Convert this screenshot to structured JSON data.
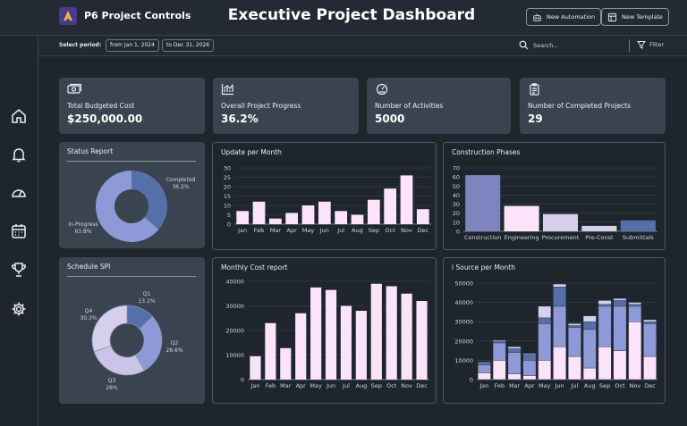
{
  "app": {
    "name": "P6 Project Controls",
    "title": "Executive Project Dashboard"
  },
  "header": {
    "new_automation": "New Automation",
    "new_template": "New Template"
  },
  "filters": {
    "period_label": "Select period:",
    "from": "from Jan 1, 2024",
    "to": "to Dec 31, 2026",
    "search_placeholder": "Search...",
    "filter_label": "Filter"
  },
  "sidebar": {
    "icons": [
      "home-icon",
      "bell-icon",
      "gauge-icon",
      "calendar-icon",
      "trophy-icon",
      "gear-icon"
    ]
  },
  "kpis": [
    {
      "label": "Total Budgeted Cost",
      "value": "$250,000.00",
      "icon": "money-icon"
    },
    {
      "label": "Overall Project Progress",
      "value": "36.2%",
      "icon": "chart-icon"
    },
    {
      "label": "Number of Activities",
      "value": "5000",
      "icon": "gauge-icon"
    },
    {
      "label": "Number of Completed Projects",
      "value": "29",
      "icon": "clipboard-icon"
    }
  ],
  "colors": {
    "accent_dark": "#7d84c0",
    "accent_light": "#fbe3fb",
    "lavender": "#d6d0ee",
    "blue": "#5570a8",
    "steel": "#8e9ad8"
  },
  "chart_data": [
    {
      "id": "status",
      "type": "pie",
      "title": "Status Report",
      "categories": [
        "Completed",
        "In-Progress"
      ],
      "values": [
        36.2,
        63.8
      ],
      "labels": [
        "36.2%",
        "63.8%"
      ]
    },
    {
      "id": "update",
      "type": "bar",
      "title": "Update per Month",
      "categories": [
        "Jan",
        "Feb",
        "Mar",
        "Apr",
        "May",
        "Jun",
        "Jul",
        "Aug",
        "Sep",
        "Oct",
        "Nov",
        "Dec"
      ],
      "values": [
        7,
        12,
        3,
        6,
        10,
        12,
        7,
        5,
        13,
        19,
        26,
        8
      ],
      "yticks": [
        0,
        5,
        10,
        15,
        20,
        25,
        30
      ],
      "ylim": [
        0,
        30
      ]
    },
    {
      "id": "phases",
      "type": "bar",
      "title": "Construction Phases",
      "categories": [
        "Construction",
        "Engineering",
        "Procurement",
        "Pre-Const",
        "Submittals"
      ],
      "values": [
        62,
        28,
        19,
        6,
        12
      ],
      "yticks": [
        0,
        10,
        20,
        30,
        40,
        50,
        60,
        70
      ],
      "ylim": [
        0,
        70
      ]
    },
    {
      "id": "spi",
      "type": "pie",
      "title": "Schedule SPI",
      "categories": [
        "Q1",
        "Q2",
        "Q3",
        "Q4"
      ],
      "values": [
        13.1,
        28.6,
        28,
        30.3
      ],
      "labels": [
        "13.1%",
        "28.6%",
        "28%",
        "30.3%"
      ]
    },
    {
      "id": "monthly",
      "type": "bar",
      "title": "Monthly Cost report",
      "categories": [
        "Jan",
        "Feb",
        "Mar",
        "Apr",
        "May",
        "Jun",
        "Jul",
        "Aug",
        "Sep",
        "Oct",
        "Nov",
        "Dec"
      ],
      "values": [
        9500,
        23000,
        12800,
        27000,
        37500,
        36500,
        30000,
        28000,
        39000,
        38000,
        35000,
        32000
      ],
      "yticks": [
        0,
        10000,
        20000,
        30000,
        40000
      ],
      "ylim": [
        0,
        40000
      ]
    },
    {
      "id": "source",
      "type": "bar",
      "title": "l Source per Month",
      "categories": [
        "Jan",
        "Feb",
        "Mar",
        "Apr",
        "May",
        "Jun",
        "Jul",
        "Aug",
        "Sep",
        "Oct",
        "Nov",
        "Dec"
      ],
      "series": [
        {
          "values": [
            3500,
            10000,
            3000,
            2000,
            10000,
            17000,
            12000,
            6000,
            17000,
            15000,
            30000,
            12000
          ]
        },
        {
          "values": [
            4000,
            9000,
            11000,
            8000,
            19000,
            21000,
            15000,
            20000,
            21000,
            23000,
            8000,
            17000
          ]
        },
        {
          "values": [
            1000,
            1000,
            2000,
            3000,
            3000,
            10000,
            1000,
            4000,
            1000,
            3000,
            1000,
            1000
          ]
        },
        {
          "values": [
            500,
            500,
            1000,
            500,
            6000,
            1500,
            1000,
            3000,
            2000,
            1000,
            1000,
            1000
          ]
        }
      ],
      "yticks": [
        0,
        10000,
        20000,
        30000,
        40000,
        50000
      ],
      "ylim": [
        0,
        50000
      ]
    }
  ]
}
